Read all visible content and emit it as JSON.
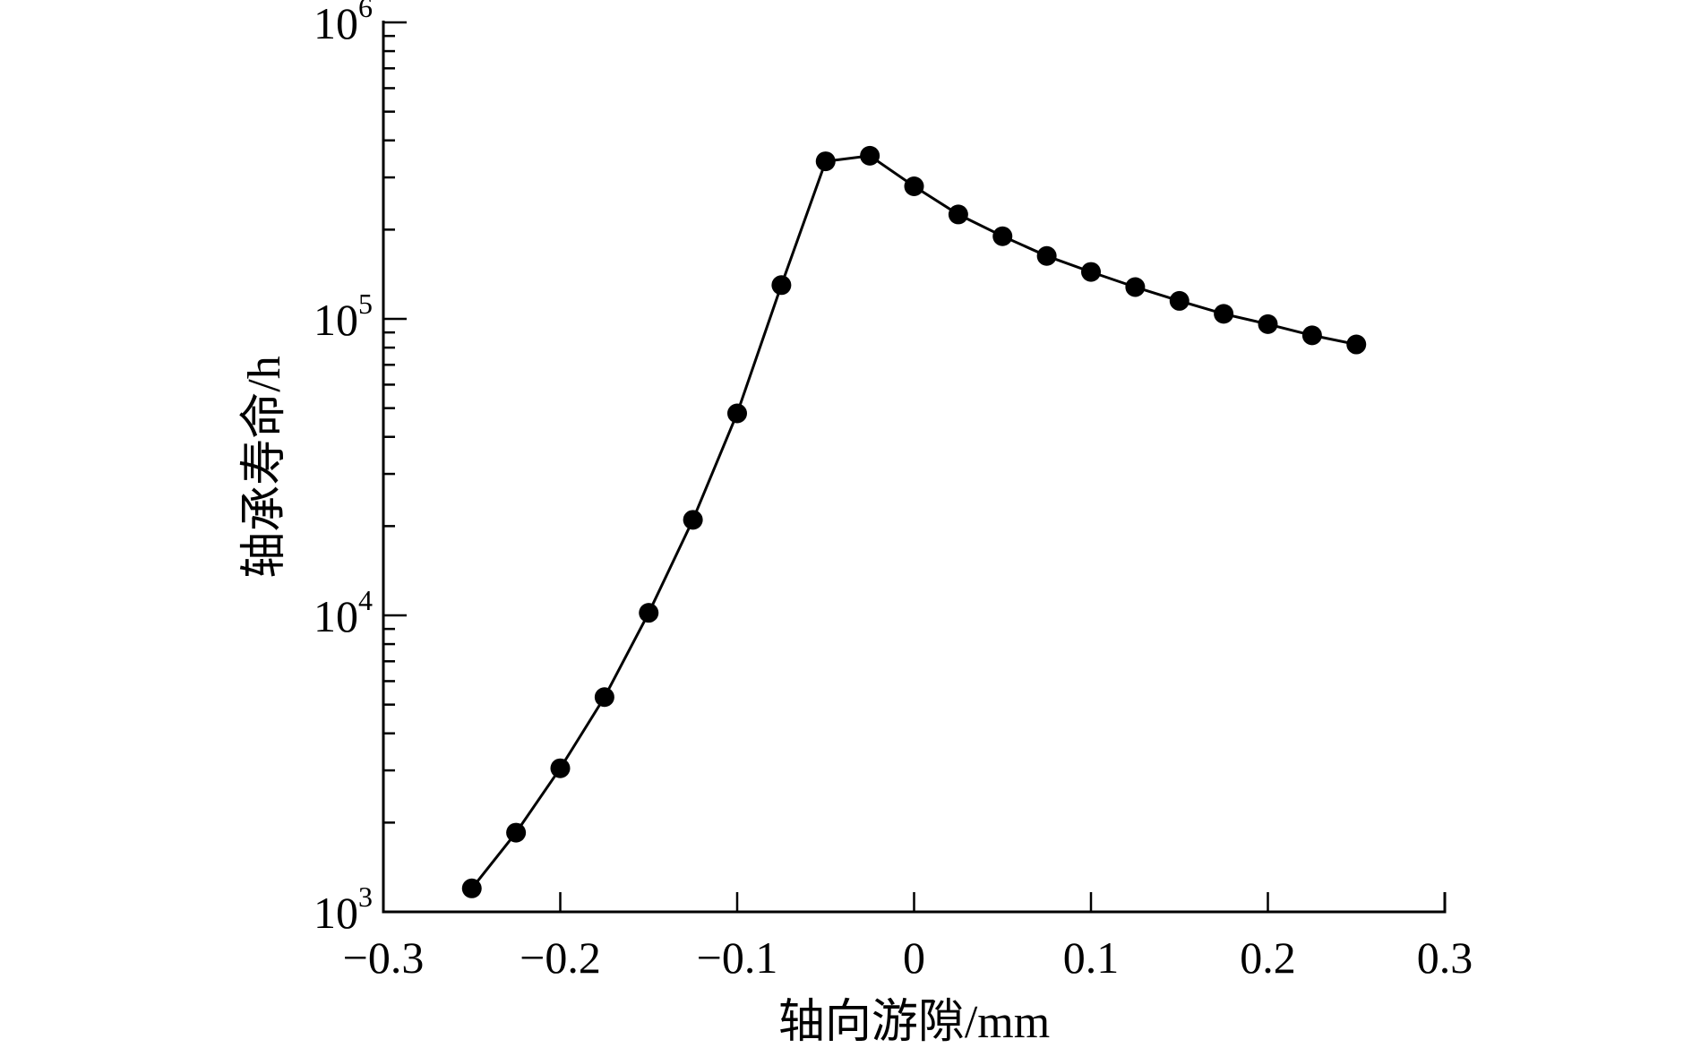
{
  "chart_data": {
    "type": "line",
    "title": "",
    "xlabel": "轴向游隙/mm",
    "ylabel": "轴承寿命/h",
    "xlim": [
      -0.3,
      0.3
    ],
    "ylim": [
      1000,
      1000000
    ],
    "yscale": "log",
    "grid": false,
    "legend": "none",
    "x_ticks": [
      {
        "value": -0.3,
        "label": "−0.3"
      },
      {
        "value": -0.2,
        "label": "−0.2"
      },
      {
        "value": -0.1,
        "label": "−0.1"
      },
      {
        "value": 0,
        "label": "0"
      },
      {
        "value": 0.1,
        "label": "0.1"
      },
      {
        "value": 0.2,
        "label": "0.2"
      },
      {
        "value": 0.3,
        "label": "0.3"
      }
    ],
    "y_ticks": [
      {
        "value": 1000,
        "base": "10",
        "exp": "3"
      },
      {
        "value": 10000,
        "base": "10",
        "exp": "4"
      },
      {
        "value": 100000,
        "base": "10",
        "exp": "5"
      },
      {
        "value": 1000000,
        "base": "10",
        "exp": "6"
      }
    ],
    "series": [
      {
        "x": [
          -0.25,
          -0.225,
          -0.2,
          -0.175,
          -0.15,
          -0.125,
          -0.1,
          -0.075,
          -0.05,
          -0.025,
          0,
          0.025,
          0.05,
          0.075,
          0.1,
          0.125,
          0.15,
          0.175,
          0.2,
          0.225,
          0.25
        ],
        "y": [
          1200,
          1850,
          3050,
          5300,
          10200,
          21000,
          48000,
          130000,
          340000,
          355000,
          280000,
          225000,
          190000,
          163000,
          144000,
          128000,
          115000,
          104000,
          96000,
          88000,
          82000
        ],
        "color": "#000000",
        "marker": "circle"
      }
    ]
  }
}
